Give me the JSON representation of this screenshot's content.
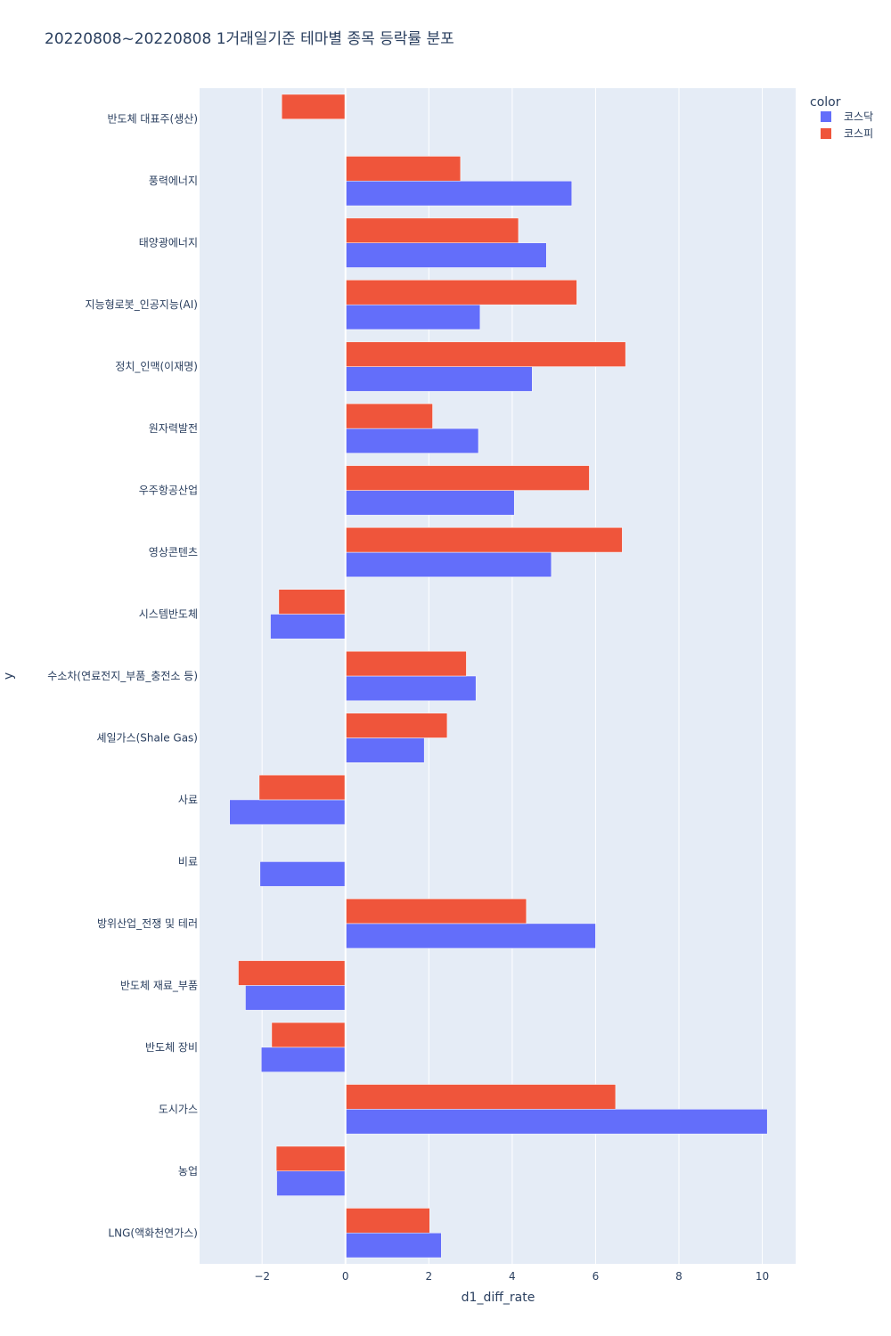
{
  "chart_data": {
    "type": "bar",
    "orientation": "horizontal",
    "barmode": "group",
    "title": "20220808~20220808 1거래일기준 테마별 종목 등락률 분포",
    "xlabel": "d1_diff_rate",
    "ylabel": "y",
    "xlim": [
      -3.5,
      10.8
    ],
    "xticks": [
      -2,
      0,
      2,
      4,
      6,
      8,
      10
    ],
    "xtick_labels": [
      "−2",
      "0",
      "2",
      "4",
      "6",
      "8",
      "10"
    ],
    "grid": true,
    "legend": {
      "title": "color",
      "placement": "top-right"
    },
    "categories": [
      "반도체 대표주(생산)",
      "풍력에너지",
      "태양광에너지",
      "지능형로봇_인공지능(AI)",
      "정치_인맥(이재명)",
      "원자력발전",
      "우주항공산업",
      "영상콘텐츠",
      "시스템반도체",
      "수소차(연료전지_부품_충전소 등)",
      "셰일가스(Shale Gas)",
      "사료",
      "비료",
      "방위산업_전쟁 및 테러",
      "반도체 재료_부품",
      "반도체 장비",
      "도시가스",
      "농업",
      "LNG(액화천연가스)"
    ],
    "series": [
      {
        "name": "코스닥",
        "color": "#636efa",
        "values": [
          null,
          5.43,
          4.82,
          3.23,
          4.48,
          3.19,
          4.05,
          4.94,
          -1.8,
          3.13,
          1.89,
          -2.78,
          -2.05,
          6.0,
          -2.4,
          -2.02,
          10.12,
          -1.65,
          2.3
        ]
      },
      {
        "name": "코스피",
        "color": "#ef553b",
        "values": [
          -1.53,
          2.76,
          4.15,
          5.55,
          6.72,
          2.09,
          5.85,
          6.64,
          -1.6,
          2.9,
          2.44,
          -2.07,
          null,
          4.34,
          -2.57,
          -1.77,
          6.48,
          -1.66,
          2.02
        ]
      }
    ]
  }
}
